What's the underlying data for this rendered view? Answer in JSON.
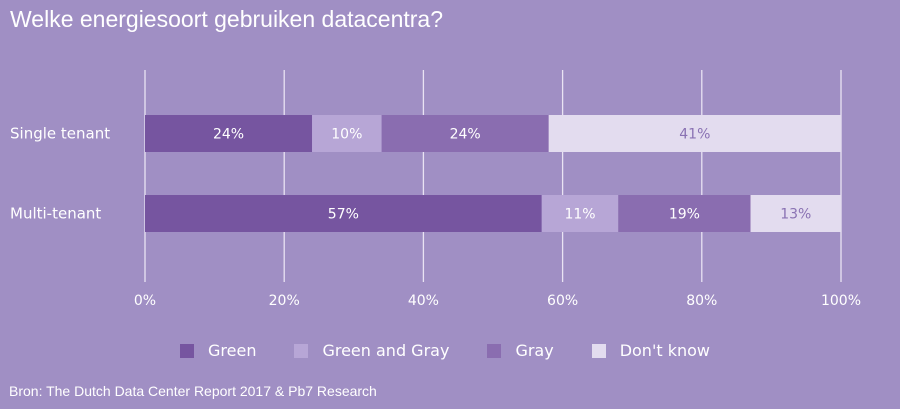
{
  "chart_data": {
    "type": "bar",
    "orientation": "horizontal",
    "stacked": true,
    "title": "Welke energiesoort gebruiken datacentra?",
    "categories": [
      "Single tenant",
      "Multi-tenant"
    ],
    "series": [
      {
        "name": "Green",
        "values": [
          24,
          57
        ],
        "labels": [
          "24%",
          "57%"
        ],
        "color": "#7655a0",
        "label_color": "#ffffff"
      },
      {
        "name": "Green and Gray",
        "values": [
          10,
          11
        ],
        "labels": [
          "10%",
          "11%"
        ],
        "color": "#b7a6d6",
        "label_color": "#ffffff"
      },
      {
        "name": "Gray",
        "values": [
          24,
          19
        ],
        "labels": [
          "24%",
          "19%"
        ],
        "color": "#8a6db0",
        "label_color": "#ffffff"
      },
      {
        "name": "Don't know",
        "values": [
          41,
          13
        ],
        "labels": [
          "41%",
          "13%"
        ],
        "color": "#e3dcef",
        "label_color": "#8a72b3"
      }
    ],
    "xlim": [
      0,
      100
    ],
    "xticks": [
      "0%",
      "20%",
      "40%",
      "60%",
      "80%",
      "100%"
    ],
    "grid": true,
    "legend_position": "bottom",
    "source": "Bron: The Dutch Data Center Report 2017 & Pb7 Research"
  },
  "colors": {
    "background": "#a08fc4",
    "text": "#ffffff",
    "grid": "#e9e3f3"
  }
}
